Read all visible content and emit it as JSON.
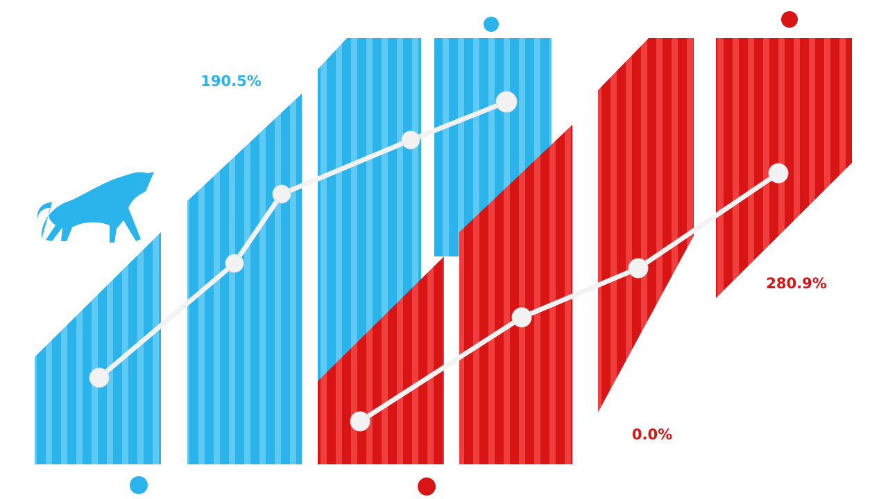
{
  "labels": {
    "blue_value": "190.5%",
    "red_value": "280.9%",
    "red_bottom_value": "0.0%"
  }
}
